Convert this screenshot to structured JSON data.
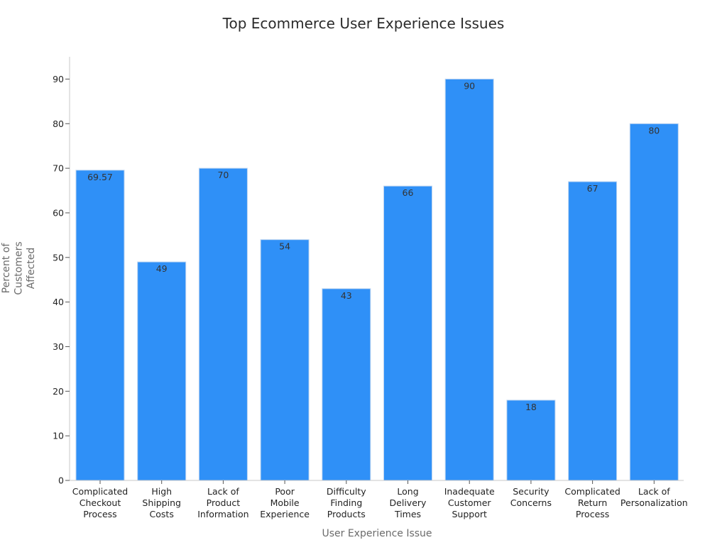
{
  "chart_data": {
    "type": "bar",
    "title": "Top Ecommerce User Experience Issues",
    "xlabel": "User Experience Issue",
    "ylabel": [
      "Percent of",
      "Customers",
      "Affected"
    ],
    "categories": [
      [
        "Complicated",
        "Checkout",
        "Process"
      ],
      [
        "High",
        "Shipping",
        "Costs"
      ],
      [
        "Lack of",
        "Product",
        "Information"
      ],
      [
        "Poor",
        "Mobile",
        "Experience"
      ],
      [
        "Difficulty",
        "Finding",
        "Products"
      ],
      [
        "Long",
        "Delivery",
        "Times"
      ],
      [
        "Inadequate",
        "Customer",
        "Support"
      ],
      [
        "Security",
        "Concerns"
      ],
      [
        "Complicated",
        "Return",
        "Process"
      ],
      [
        "Lack of",
        "Personalization"
      ]
    ],
    "values": [
      69.57,
      49,
      70,
      54,
      43,
      66,
      90,
      18,
      67,
      80
    ],
    "value_labels": [
      "69.57",
      "49",
      "70",
      "54",
      "43",
      "66",
      "90",
      "18",
      "67",
      "80"
    ],
    "ylim": [
      0,
      95
    ],
    "yticks": [
      0,
      10,
      20,
      30,
      40,
      50,
      60,
      70,
      80,
      90
    ],
    "bar_color": "#2f90f7",
    "grid": false,
    "legend": "none"
  }
}
